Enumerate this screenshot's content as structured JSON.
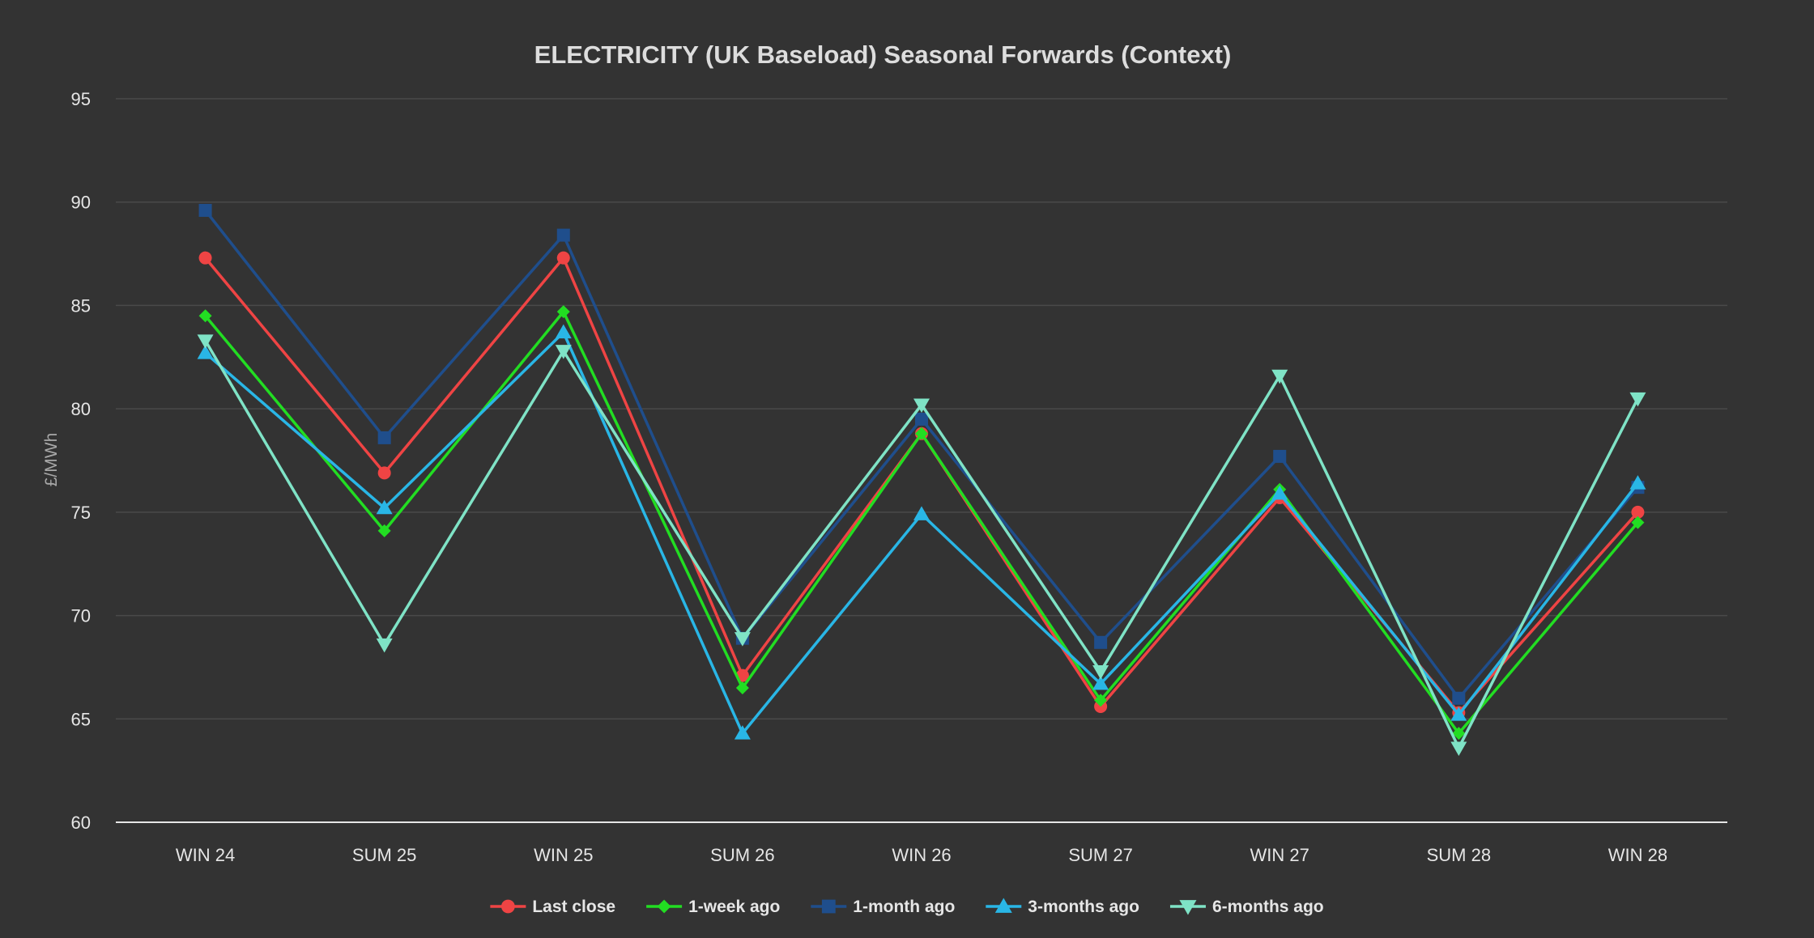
{
  "chart_data": {
    "type": "line",
    "title": "ELECTRICITY (UK Baseload) Seasonal Forwards (Context)",
    "ylabel": "£/MWh",
    "xlabel": "",
    "ylim": [
      60,
      95
    ],
    "yticks": [
      60,
      65,
      70,
      75,
      80,
      85,
      90,
      95
    ],
    "grid": true,
    "legend_position": "bottom",
    "categories": [
      "WIN 24",
      "SUM 25",
      "WIN 25",
      "SUM 26",
      "WIN 26",
      "SUM 27",
      "WIN 27",
      "SUM 28",
      "WIN 28"
    ],
    "series": [
      {
        "name": "Last close",
        "color": "#ef4444",
        "marker": "circle",
        "values": [
          87.3,
          76.9,
          87.3,
          67.1,
          78.8,
          65.6,
          75.7,
          65.3,
          75.0
        ]
      },
      {
        "name": "1-week ago",
        "color": "#22dd22",
        "marker": "diamond",
        "values": [
          84.5,
          74.1,
          84.7,
          66.5,
          78.8,
          65.9,
          76.1,
          64.3,
          74.5
        ]
      },
      {
        "name": "1-month ago",
        "color": "#1f4e8c",
        "marker": "square",
        "values": [
          89.6,
          78.6,
          88.4,
          68.9,
          79.5,
          68.7,
          77.7,
          66.0,
          76.2
        ]
      },
      {
        "name": "3-months ago",
        "color": "#29b6e6",
        "marker": "triangle-up",
        "values": [
          82.7,
          75.2,
          83.7,
          64.3,
          74.9,
          66.7,
          75.9,
          65.2,
          76.4
        ]
      },
      {
        "name": "6-months ago",
        "color": "#7fe3c6",
        "marker": "triangle-down",
        "values": [
          83.3,
          68.6,
          82.8,
          68.9,
          80.2,
          67.3,
          81.6,
          63.6,
          80.5
        ]
      }
    ]
  }
}
